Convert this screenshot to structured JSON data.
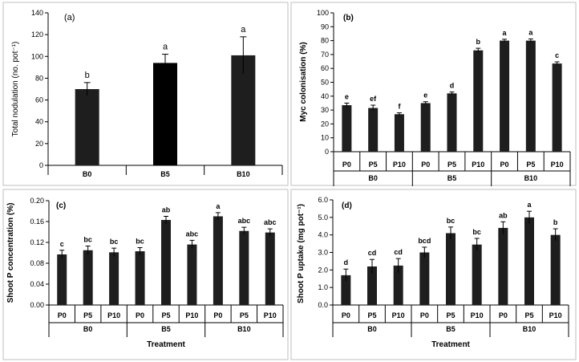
{
  "chart_data": [
    {
      "panel": "(a)",
      "type": "bar",
      "ylabel": "Total nodulation (no. pot⁻¹)",
      "xlabel": "",
      "ylim": [
        0,
        140
      ],
      "yticks": [
        0,
        20,
        40,
        60,
        80,
        100,
        120,
        140
      ],
      "categories": [
        "B0",
        "B5",
        "B10"
      ],
      "values": [
        70,
        94,
        101
      ],
      "errors": [
        6,
        8,
        17
      ],
      "letters": [
        "b",
        "a",
        "a"
      ],
      "bar_colors": [
        "#1e1e1e",
        "#000000",
        "#1e1e1e"
      ]
    },
    {
      "panel": "(b)",
      "type": "bar",
      "ylabel": "Myc colonisation (%)",
      "xlabel": "",
      "ylim": [
        0,
        100
      ],
      "yticks": [
        0,
        10,
        20,
        30,
        40,
        50,
        60,
        70,
        80,
        90,
        100
      ],
      "categories": [
        "P0",
        "P5",
        "P10",
        "P0",
        "P5",
        "P10",
        "P0",
        "P5",
        "P10"
      ],
      "groups": [
        "B0",
        "B5",
        "B10"
      ],
      "values": [
        33.5,
        31.5,
        27,
        35,
        42,
        73,
        80,
        80,
        63.5
      ],
      "errors": [
        1.5,
        2,
        1,
        1,
        1,
        1.5,
        1,
        1.2,
        1.2
      ],
      "letters": [
        "e",
        "ef",
        "f",
        "e",
        "d",
        "b",
        "a",
        "a",
        "c"
      ]
    },
    {
      "panel": "(c)",
      "type": "bar",
      "ylabel": "Shoot P concentration (%)",
      "xlabel": "Treatment",
      "ylim": [
        0,
        0.2
      ],
      "yticks": [
        "0.00",
        "0.04",
        "0.08",
        "0.12",
        "0.16",
        "0.20"
      ],
      "categories": [
        "P0",
        "P5",
        "P10",
        "P0",
        "P5",
        "P10",
        "P0",
        "P5",
        "P10"
      ],
      "groups": [
        "B0",
        "B5",
        "B10"
      ],
      "values": [
        0.097,
        0.105,
        0.101,
        0.103,
        0.163,
        0.116,
        0.17,
        0.142,
        0.139
      ],
      "errors": [
        0.008,
        0.008,
        0.008,
        0.007,
        0.007,
        0.008,
        0.007,
        0.007,
        0.007
      ],
      "letters": [
        "c",
        "bc",
        "bc",
        "bc",
        "ab",
        "abc",
        "a",
        "abc",
        "abc"
      ]
    },
    {
      "panel": "(d)",
      "type": "bar",
      "ylabel": "Shoot P uptake (mg pot⁻¹)",
      "xlabel": "Treatment",
      "ylim": [
        0,
        6
      ],
      "yticks": [
        "0.0",
        "1.0",
        "2.0",
        "3.0",
        "4.0",
        "5.0",
        "6.0"
      ],
      "categories": [
        "P0",
        "P5",
        "P10",
        "P0",
        "P5",
        "P10",
        "P0",
        "P5",
        "P10"
      ],
      "groups": [
        "B0",
        "B5",
        "B10"
      ],
      "values": [
        1.7,
        2.2,
        2.25,
        3.0,
        4.1,
        3.45,
        4.4,
        5.0,
        4.0
      ],
      "errors": [
        0.35,
        0.4,
        0.4,
        0.3,
        0.35,
        0.35,
        0.35,
        0.35,
        0.35
      ],
      "letters": [
        "d",
        "cd",
        "cd",
        "bcd",
        "bc",
        "bc",
        "ab",
        "a",
        "b"
      ]
    }
  ],
  "colors": {
    "bar": "#1e1e1e",
    "frame": "#bfbfbf",
    "axis": "#000000"
  }
}
